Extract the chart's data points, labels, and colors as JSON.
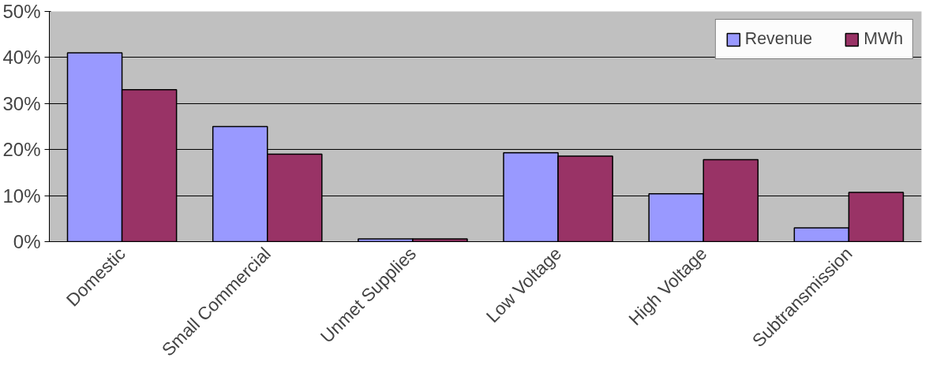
{
  "chart_data": {
    "type": "bar",
    "categories": [
      "Domestic",
      "Small Commercial",
      "Unmet Supplies",
      "Low Voltage",
      "High Voltage",
      "Subtransmission"
    ],
    "series": [
      {
        "name": "Revenue",
        "color": "#9999ff",
        "values": [
          0.41,
          0.25,
          0.006,
          0.193,
          0.104,
          0.03
        ]
      },
      {
        "name": "MWh",
        "color": "#993366",
        "values": [
          0.33,
          0.19,
          0.006,
          0.186,
          0.178,
          0.107
        ]
      }
    ],
    "ylim": [
      0,
      0.5
    ],
    "yticks": [
      {
        "value": 0,
        "label": "0%"
      },
      {
        "value": 0.1,
        "label": "10%"
      },
      {
        "value": 0.2,
        "label": "20%"
      },
      {
        "value": 0.3,
        "label": "30%"
      },
      {
        "value": 0.4,
        "label": "40%"
      },
      {
        "value": 0.5,
        "label": "50%"
      }
    ],
    "grid": "y",
    "legend": "top right"
  }
}
